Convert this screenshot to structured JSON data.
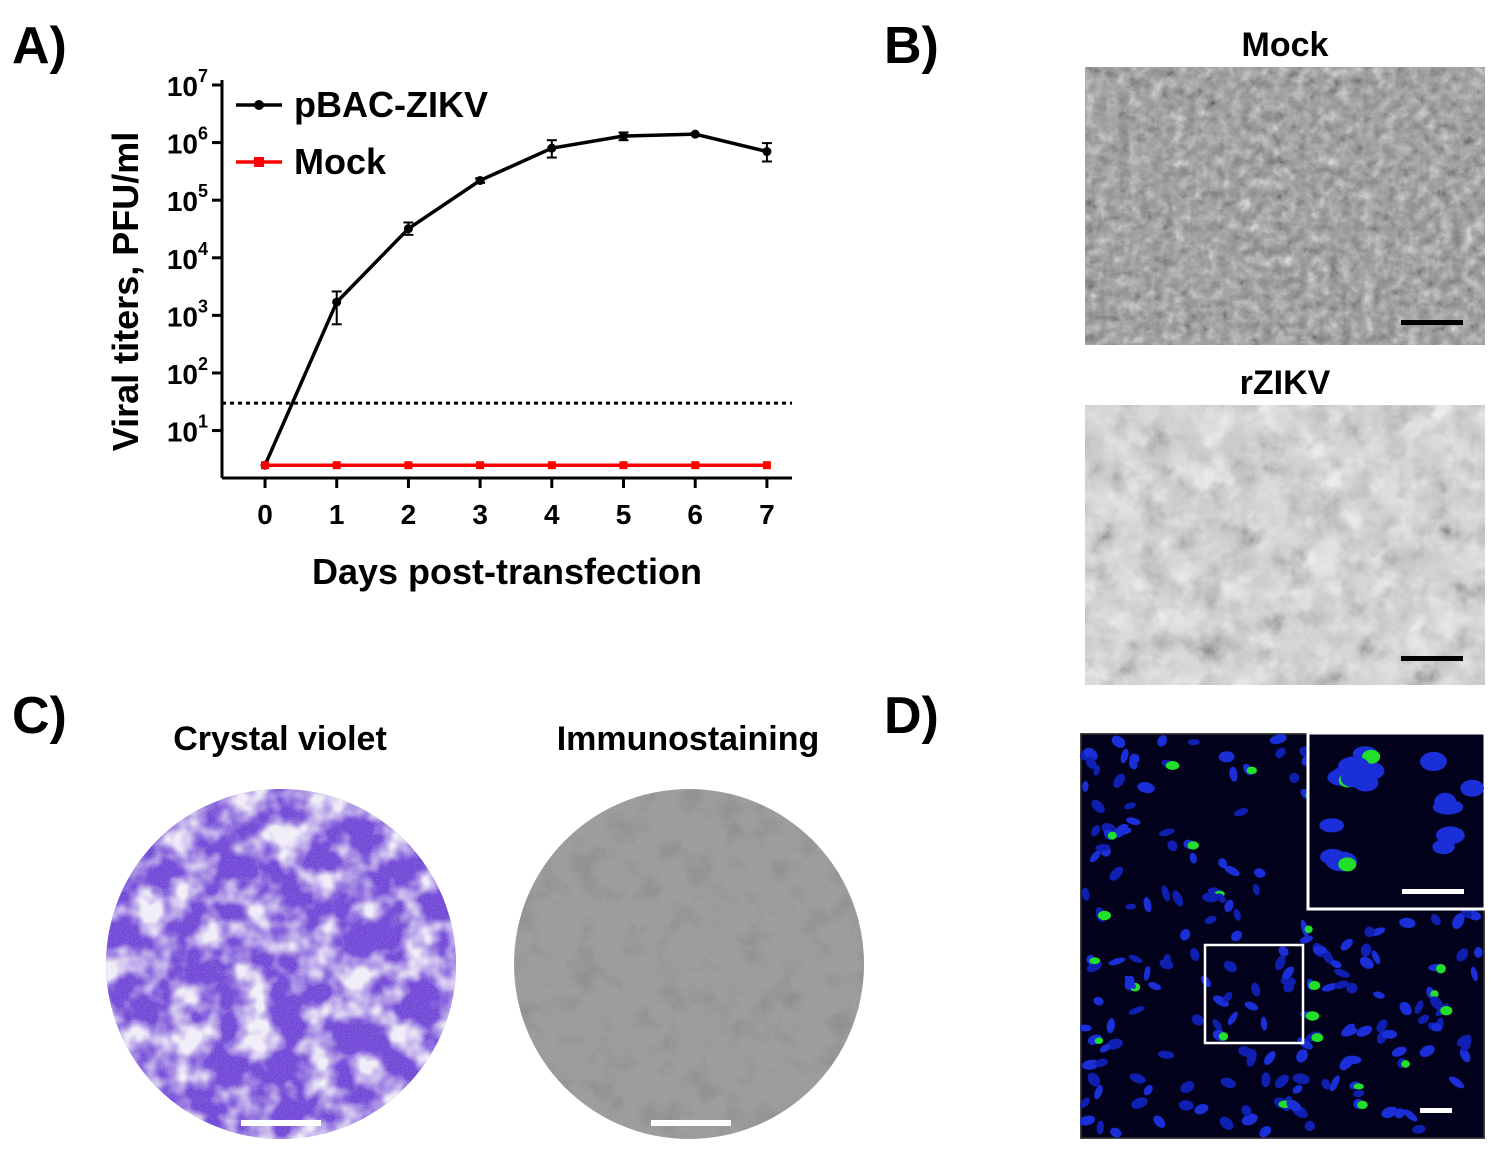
{
  "panels": {
    "a": {
      "letter": "A)"
    },
    "b": {
      "letter": "B)",
      "mock_title": "Mock",
      "rzikv_title": "rZIKV"
    },
    "c": {
      "letter": "C)",
      "left_title": "Crystal violet",
      "right_title": "Immunostaining"
    },
    "d": {
      "letter": "D)"
    }
  },
  "chart_data": {
    "type": "line",
    "xlabel": "Days post-transfection",
    "ylabel": "Viral titers, PFU/ml",
    "x": [
      0,
      1,
      2,
      3,
      4,
      5,
      6,
      7
    ],
    "xticks": [
      "0",
      "1",
      "2",
      "3",
      "4",
      "5",
      "6",
      "7"
    ],
    "yscale": "log",
    "yticks": [
      {
        "base": "10",
        "exp": "1",
        "value": 10
      },
      {
        "base": "10",
        "exp": "2",
        "value": 100
      },
      {
        "base": "10",
        "exp": "3",
        "value": 1000
      },
      {
        "base": "10",
        "exp": "4",
        "value": 10000
      },
      {
        "base": "10",
        "exp": "5",
        "value": 100000
      },
      {
        "base": "10",
        "exp": "6",
        "value": 1000000
      },
      {
        "base": "10",
        "exp": "7",
        "value": 10000000
      }
    ],
    "ylim": [
      1.5,
      10000000
    ],
    "xlim": [
      -0.6,
      7.35
    ],
    "detection_limit": 30,
    "legend_position": "top-left",
    "series": [
      {
        "name": "pBAC-ZIKV",
        "color": "#000000",
        "marker": "circle",
        "values": [
          2.5,
          1700,
          32000,
          220000,
          800000,
          1300000,
          1400000,
          700000
        ],
        "err_low": [
          2.5,
          700,
          25000,
          200000,
          550000,
          1100000,
          1350000,
          470000
        ],
        "err_high": [
          2.5,
          2600,
          41000,
          240000,
          1100000,
          1500000,
          1450000,
          980000
        ]
      },
      {
        "name": "Mock",
        "color": "#ff0000",
        "marker": "square",
        "values": [
          2.5,
          2.5,
          2.5,
          2.5,
          2.5,
          2.5,
          2.5,
          2.5
        ]
      }
    ]
  }
}
